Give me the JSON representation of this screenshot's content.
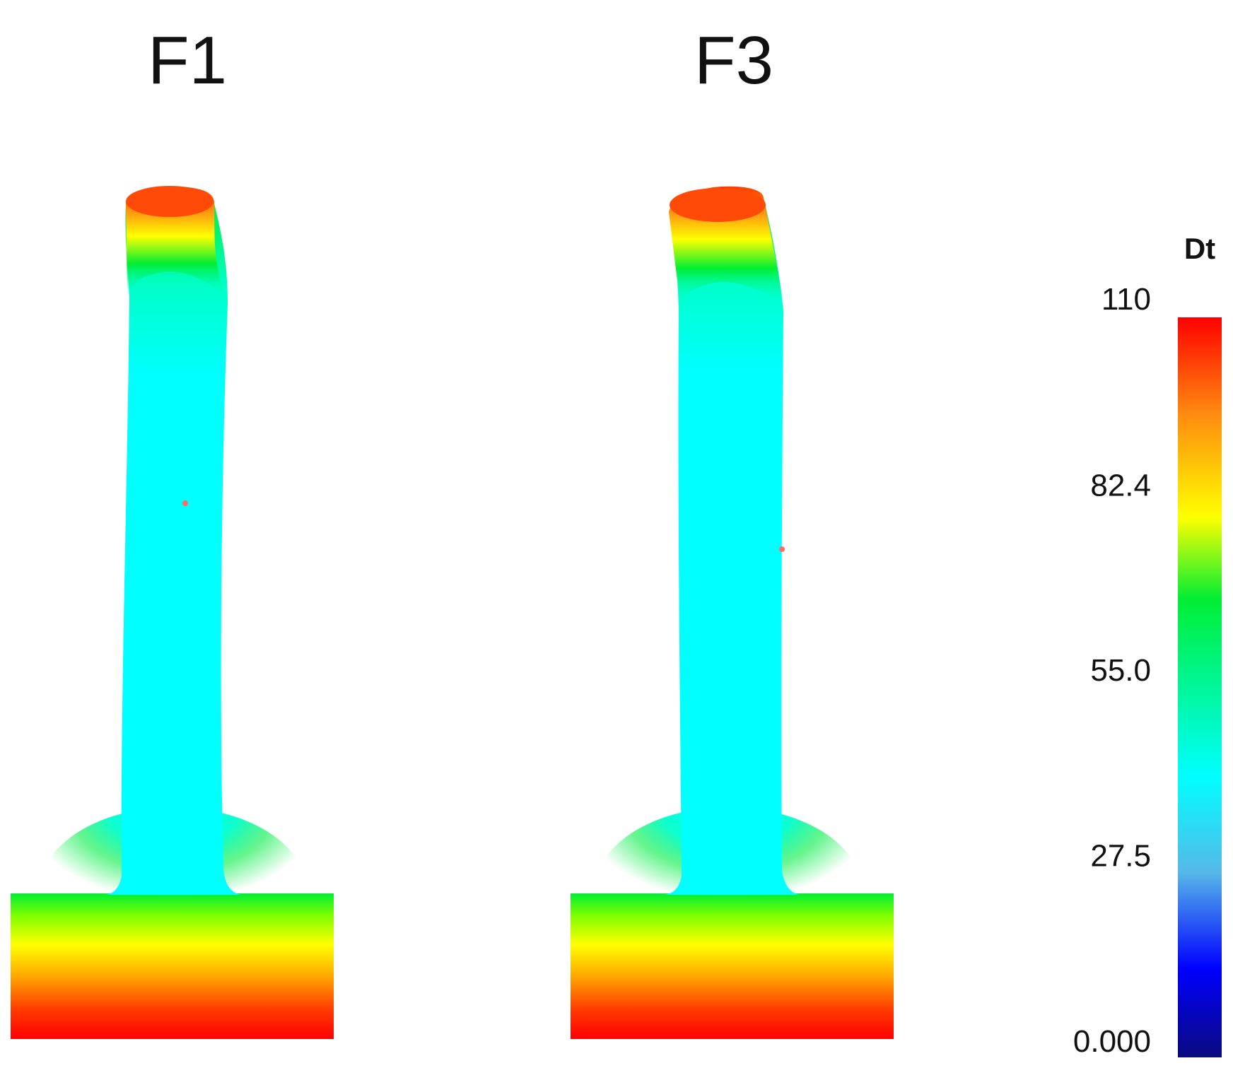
{
  "panels": [
    {
      "title": "F1"
    },
    {
      "title": "F3"
    }
  ],
  "colorbar": {
    "title": "Dt",
    "min": 0,
    "max": 110,
    "ticks": [
      {
        "value": 110,
        "label": "110"
      },
      {
        "value": 82.4,
        "label": "82.4"
      },
      {
        "value": 55.0,
        "label": "55.0"
      },
      {
        "value": 27.5,
        "label": "27.5"
      },
      {
        "value": 0,
        "label": "0.000"
      }
    ],
    "colors": [
      "#0a0a80",
      "#0000ff",
      "#56d8e8",
      "#00ffff",
      "#00ee33",
      "#ffff00",
      "#ff7a10",
      "#ff0000"
    ]
  }
}
